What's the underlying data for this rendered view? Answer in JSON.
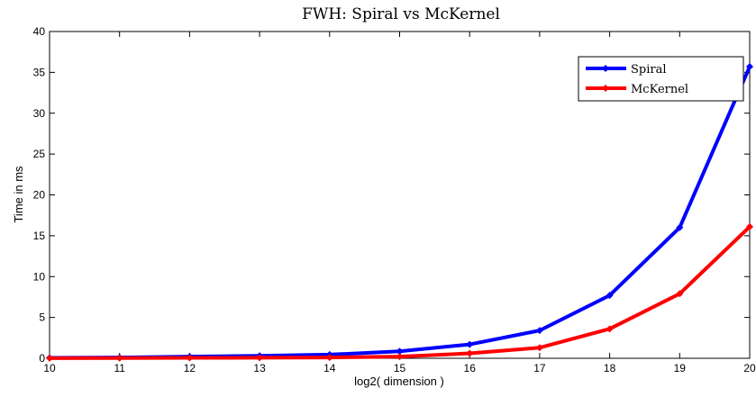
{
  "chart_data": {
    "type": "line",
    "title": "FWH: Spiral vs McKernel",
    "xlabel": "log2( dimension )",
    "ylabel": "Time in ms",
    "xlim": [
      10,
      20
    ],
    "ylim": [
      0,
      40
    ],
    "x_ticks": [
      "10",
      "11",
      "12",
      "13",
      "14",
      "15",
      "16",
      "17",
      "18",
      "19",
      "20"
    ],
    "y_ticks": [
      "0",
      "5",
      "10",
      "15",
      "20",
      "25",
      "30",
      "35",
      "40"
    ],
    "x": [
      10,
      11,
      12,
      13,
      14,
      15,
      16,
      17,
      18,
      19,
      20
    ],
    "series": [
      {
        "name": "Spiral",
        "color": "#0000ff",
        "values": [
          0.05,
          0.1,
          0.2,
          0.3,
          0.45,
          0.85,
          1.7,
          3.4,
          7.7,
          16.0,
          35.7
        ]
      },
      {
        "name": "McKernel",
        "color": "#ff0000",
        "values": [
          0.02,
          0.03,
          0.05,
          0.07,
          0.1,
          0.2,
          0.6,
          1.3,
          3.6,
          7.9,
          16.1
        ]
      }
    ],
    "grid": false,
    "legend_position": "top-right"
  }
}
